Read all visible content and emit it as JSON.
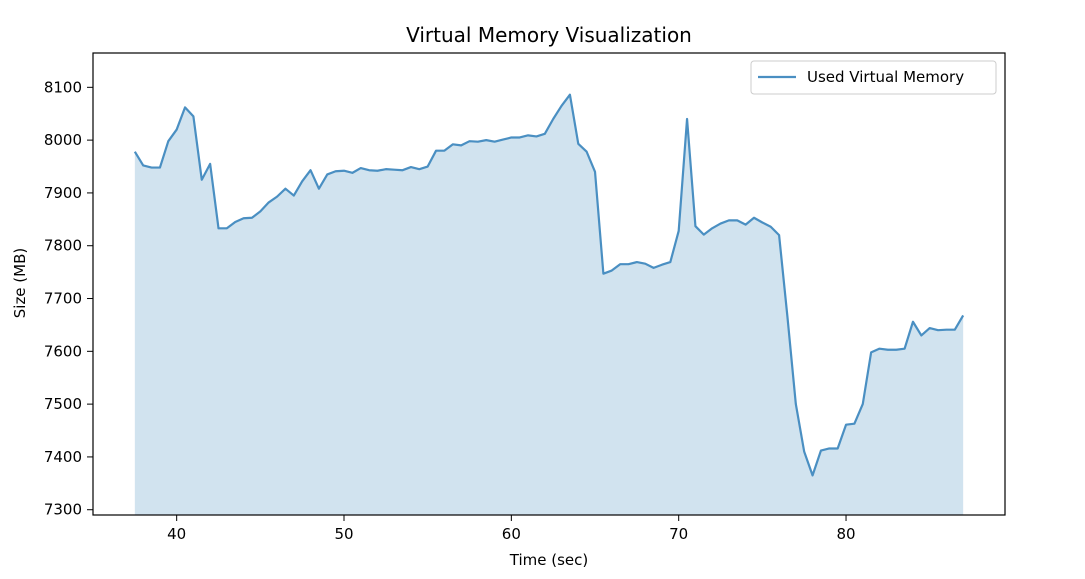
{
  "chart_data": {
    "type": "area",
    "title": "Virtual Memory Visualization",
    "xlabel": "Time (sec)",
    "ylabel": "Size (MB)",
    "xlim": [
      35,
      89.5
    ],
    "ylim": [
      7290,
      8165
    ],
    "xticks": [
      40,
      50,
      60,
      70,
      80
    ],
    "yticks": [
      7300,
      7400,
      7500,
      7600,
      7700,
      7800,
      7900,
      8000,
      8100
    ],
    "grid": false,
    "legend_position": "top-right",
    "series": [
      {
        "name": "Used Virtual Memory",
        "color": "#4a8fc2",
        "fill_color": "#d1e3ef",
        "x": [
          37.5,
          38.0,
          38.5,
          39.0,
          39.5,
          40.0,
          40.5,
          41.0,
          41.5,
          42.0,
          42.5,
          43.0,
          43.5,
          44.0,
          44.5,
          45.0,
          45.5,
          46.0,
          46.5,
          47.0,
          47.5,
          48.0,
          48.5,
          49.0,
          49.5,
          50.0,
          50.5,
          51.0,
          51.5,
          52.0,
          52.5,
          53.0,
          53.5,
          54.0,
          54.5,
          55.0,
          55.5,
          56.0,
          56.5,
          57.0,
          57.5,
          58.0,
          58.5,
          59.0,
          59.5,
          60.0,
          60.5,
          61.0,
          61.5,
          62.0,
          62.5,
          63.0,
          63.5,
          64.0,
          64.5,
          65.0,
          65.5,
          66.0,
          66.5,
          67.0,
          67.5,
          68.0,
          68.5,
          69.0,
          69.5,
          70.0,
          70.5,
          71.0,
          71.5,
          72.0,
          72.5,
          73.0,
          73.5,
          74.0,
          74.5,
          75.0,
          75.5,
          76.0,
          76.5,
          77.0,
          77.5,
          78.0,
          78.5,
          79.0,
          79.5,
          80.0,
          80.5,
          81.0,
          81.5,
          82.0,
          82.5,
          83.0,
          83.5,
          84.0,
          84.5,
          85.0,
          85.5,
          86.0,
          86.5,
          87.0
        ],
        "y": [
          7978,
          7952,
          7948,
          7948,
          7998,
          8020,
          8062,
          8045,
          7925,
          7955,
          7833,
          7833,
          7845,
          7852,
          7853,
          7865,
          7882,
          7893,
          7908,
          7895,
          7922,
          7943,
          7908,
          7935,
          7941,
          7942,
          7938,
          7947,
          7943,
          7942,
          7945,
          7944,
          7943,
          7949,
          7945,
          7950,
          7980,
          7980,
          7992,
          7990,
          7998,
          7997,
          8000,
          7997,
          8001,
          8005,
          8005,
          8009,
          8007,
          8012,
          8040,
          8065,
          8086,
          7993,
          7978,
          7940,
          7747,
          7753,
          7765,
          7765,
          7769,
          7766,
          7758,
          7764,
          7769,
          7828,
          8040,
          7837,
          7821,
          7833,
          7842,
          7848,
          7848,
          7840,
          7853,
          7844,
          7836,
          7820,
          7665,
          7500,
          7410,
          7365,
          7412,
          7416,
          7416,
          7461,
          7463,
          7500,
          7598,
          7605,
          7603,
          7603,
          7605,
          7656,
          7630,
          7644,
          7640,
          7641,
          7641,
          7668
        ]
      }
    ]
  }
}
